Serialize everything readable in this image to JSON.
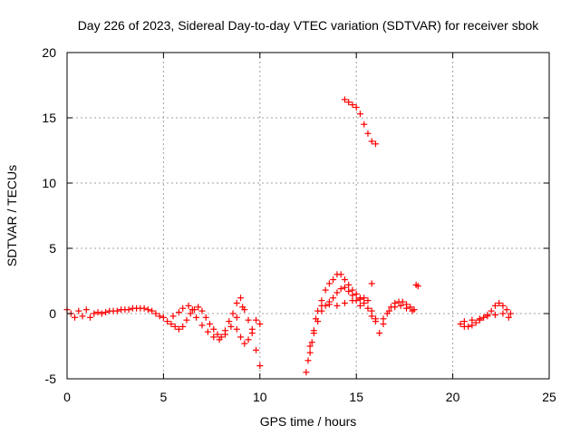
{
  "chart_data": {
    "type": "scatter",
    "title": "Day 226 of 2023, Sidereal Day-to-day VTEC variation (SDTVAR) for receiver sbok",
    "xlabel": "GPS time / hours",
    "ylabel": "SDTVAR / TECUs",
    "xlim": [
      0,
      25
    ],
    "ylim": [
      -5,
      20
    ],
    "xticks": [
      0,
      5,
      10,
      15,
      20,
      25
    ],
    "yticks": [
      -5,
      0,
      5,
      10,
      15,
      20
    ],
    "grid": true,
    "marker": "+",
    "series": [
      {
        "name": "SDTVAR",
        "color": "#ff0000",
        "points": [
          [
            0.0,
            0.3
          ],
          [
            0.2,
            0.0
          ],
          [
            0.4,
            -0.3
          ],
          [
            0.6,
            0.2
          ],
          [
            0.8,
            -0.2
          ],
          [
            1.0,
            0.3
          ],
          [
            1.2,
            -0.3
          ],
          [
            1.4,
            0.0
          ],
          [
            1.6,
            0.1
          ],
          [
            1.8,
            0.0
          ],
          [
            2.0,
            0.1
          ],
          [
            2.2,
            0.2
          ],
          [
            2.4,
            0.2
          ],
          [
            2.6,
            0.2
          ],
          [
            2.8,
            0.3
          ],
          [
            3.0,
            0.3
          ],
          [
            3.2,
            0.3
          ],
          [
            3.4,
            0.4
          ],
          [
            3.6,
            0.4
          ],
          [
            3.8,
            0.4
          ],
          [
            4.0,
            0.4
          ],
          [
            4.2,
            0.3
          ],
          [
            4.4,
            0.2
          ],
          [
            4.6,
            0.0
          ],
          [
            4.8,
            -0.2
          ],
          [
            5.0,
            -0.3
          ],
          [
            5.2,
            -0.6
          ],
          [
            5.4,
            -0.8
          ],
          [
            5.6,
            -1.0
          ],
          [
            5.8,
            -1.2
          ],
          [
            6.0,
            -1.0
          ],
          [
            6.2,
            -0.5
          ],
          [
            6.4,
            0.0
          ],
          [
            6.6,
            0.3
          ],
          [
            6.8,
            0.5
          ],
          [
            7.0,
            0.2
          ],
          [
            7.2,
            -0.3
          ],
          [
            7.4,
            -0.8
          ],
          [
            7.6,
            -1.2
          ],
          [
            7.8,
            -1.6
          ],
          [
            8.0,
            -1.8
          ],
          [
            8.2,
            -1.3
          ],
          [
            8.4,
            -0.6
          ],
          [
            8.6,
            0.0
          ],
          [
            8.8,
            0.8
          ],
          [
            9.0,
            1.2
          ],
          [
            9.2,
            0.3
          ],
          [
            9.4,
            -0.5
          ],
          [
            9.6,
            -1.5
          ],
          [
            9.8,
            -2.8
          ],
          [
            10.0,
            -4.0
          ],
          [
            5.5,
            -0.2
          ],
          [
            5.8,
            0.1
          ],
          [
            6.0,
            0.4
          ],
          [
            6.3,
            0.6
          ],
          [
            6.5,
            0.3
          ],
          [
            6.7,
            -0.3
          ],
          [
            7.0,
            -0.9
          ],
          [
            7.3,
            -1.4
          ],
          [
            7.6,
            -1.8
          ],
          [
            7.9,
            -2.0
          ],
          [
            8.2,
            -1.6
          ],
          [
            8.5,
            -1.0
          ],
          [
            8.8,
            -0.3
          ],
          [
            9.1,
            0.5
          ],
          [
            8.8,
            -1.2
          ],
          [
            9.0,
            -1.8
          ],
          [
            9.2,
            -2.3
          ],
          [
            9.4,
            -2.0
          ],
          [
            9.6,
            -1.2
          ],
          [
            9.8,
            -0.5
          ],
          [
            10.0,
            -0.8
          ],
          [
            12.4,
            -4.5
          ],
          [
            12.5,
            -3.6
          ],
          [
            12.6,
            -3.0
          ],
          [
            12.7,
            -2.2
          ],
          [
            12.8,
            -1.3
          ],
          [
            12.9,
            -0.4
          ],
          [
            13.0,
            0.2
          ],
          [
            13.2,
            1.0
          ],
          [
            13.4,
            1.8
          ],
          [
            13.6,
            2.3
          ],
          [
            13.8,
            2.6
          ],
          [
            14.0,
            3.0
          ],
          [
            14.2,
            3.0
          ],
          [
            14.4,
            2.6
          ],
          [
            14.6,
            2.2
          ],
          [
            14.8,
            1.8
          ],
          [
            15.0,
            1.5
          ],
          [
            15.2,
            1.2
          ],
          [
            15.4,
            0.8
          ],
          [
            15.6,
            0.4
          ],
          [
            15.8,
            -0.2
          ],
          [
            16.0,
            -0.6
          ],
          [
            12.6,
            -2.5
          ],
          [
            12.8,
            -1.5
          ],
          [
            13.0,
            -0.6
          ],
          [
            13.2,
            0.2
          ],
          [
            13.4,
            0.6
          ],
          [
            13.6,
            0.9
          ],
          [
            13.8,
            1.2
          ],
          [
            14.0,
            1.6
          ],
          [
            14.2,
            1.9
          ],
          [
            14.4,
            2.0
          ],
          [
            14.6,
            1.7
          ],
          [
            14.8,
            1.4
          ],
          [
            15.0,
            1.0
          ],
          [
            15.2,
            0.6
          ],
          [
            13.2,
            0.6
          ],
          [
            13.6,
            0.7
          ],
          [
            14.0,
            0.6
          ],
          [
            14.4,
            0.8
          ],
          [
            14.8,
            1.0
          ],
          [
            15.2,
            1.1
          ],
          [
            15.4,
            1.2
          ],
          [
            15.6,
            1.0
          ],
          [
            15.8,
            0.2
          ],
          [
            16.0,
            -0.4
          ],
          [
            15.8,
            2.3
          ],
          [
            16.2,
            -1.5
          ],
          [
            16.4,
            -0.8
          ],
          [
            16.6,
            0.0
          ],
          [
            16.8,
            0.5
          ],
          [
            17.0,
            0.8
          ],
          [
            17.2,
            0.9
          ],
          [
            17.4,
            0.9
          ],
          [
            17.6,
            0.7
          ],
          [
            17.8,
            0.5
          ],
          [
            18.0,
            0.3
          ],
          [
            18.2,
            2.1
          ],
          [
            18.1,
            2.2
          ],
          [
            16.4,
            -0.4
          ],
          [
            16.7,
            0.2
          ],
          [
            17.0,
            0.5
          ],
          [
            17.3,
            0.6
          ],
          [
            17.6,
            0.4
          ],
          [
            17.9,
            0.2
          ],
          [
            14.4,
            16.4
          ],
          [
            14.6,
            16.2
          ],
          [
            14.8,
            16.0
          ],
          [
            15.0,
            15.8
          ],
          [
            15.2,
            15.3
          ],
          [
            15.4,
            14.5
          ],
          [
            15.6,
            13.8
          ],
          [
            15.8,
            13.2
          ],
          [
            16.0,
            13.0
          ],
          [
            20.4,
            -0.8
          ],
          [
            20.6,
            -1.0
          ],
          [
            20.8,
            -1.0
          ],
          [
            21.0,
            -0.9
          ],
          [
            21.2,
            -0.7
          ],
          [
            21.4,
            -0.5
          ],
          [
            21.6,
            -0.3
          ],
          [
            21.8,
            -0.1
          ],
          [
            22.0,
            0.2
          ],
          [
            22.2,
            0.6
          ],
          [
            22.4,
            0.8
          ],
          [
            22.6,
            0.6
          ],
          [
            22.8,
            0.3
          ],
          [
            23.0,
            0.0
          ],
          [
            20.6,
            -0.6
          ],
          [
            21.0,
            -0.5
          ],
          [
            21.4,
            -0.4
          ],
          [
            21.8,
            -0.2
          ],
          [
            22.2,
            -0.1
          ],
          [
            22.6,
            0.0
          ],
          [
            22.9,
            -0.3
          ]
        ]
      }
    ]
  }
}
